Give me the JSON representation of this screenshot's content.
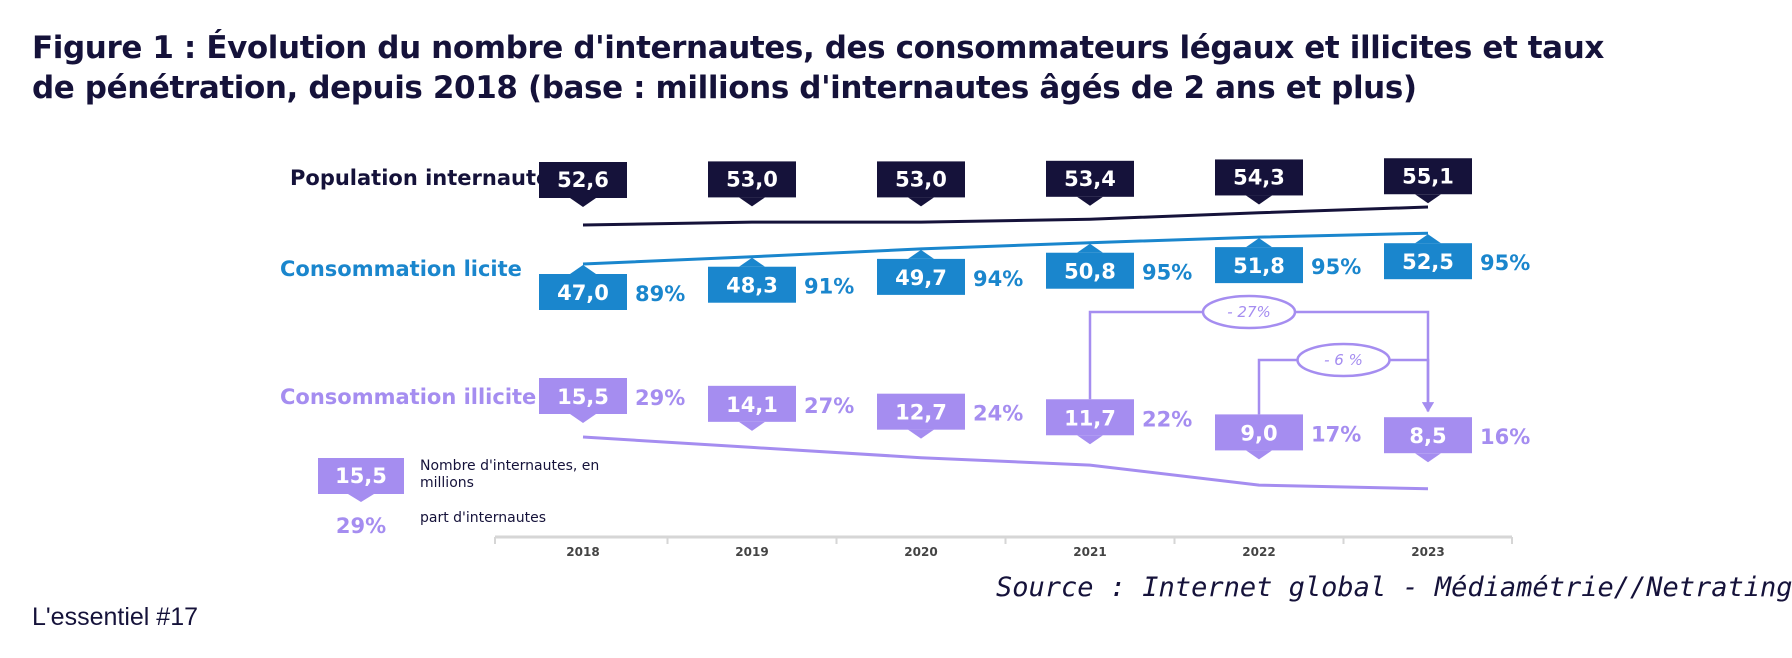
{
  "title": {
    "line1": "Figure 1 : Évolution du nombre d'internautes, des consommateurs légaux et illicites et taux",
    "line2": "de pénétration, depuis 2018 (base : millions d'internautes âgés de 2 ans et plus)"
  },
  "footer": {
    "label": "L'essentiel #17"
  },
  "source": {
    "text": "Source : Internet global - Médiamétrie//Netratings."
  },
  "colors": {
    "dark": "#15123a",
    "blue": "#1a86cd",
    "purple": "#a58df0",
    "axis": "#d6d6d6"
  },
  "chart_data": {
    "type": "line",
    "categories": [
      "2018",
      "2019",
      "2020",
      "2021",
      "2022",
      "2023"
    ],
    "series": [
      {
        "name": "Population internaute",
        "values": [
          52.6,
          53.0,
          53.0,
          53.4,
          54.3,
          55.1
        ],
        "labels": [
          "52,6",
          "53,0",
          "53,0",
          "53,4",
          "54,3",
          "55,1"
        ]
      },
      {
        "name": "Consommation licite",
        "values": [
          47.0,
          48.3,
          49.7,
          50.8,
          51.8,
          52.5
        ],
        "labels": [
          "47,0",
          "48,3",
          "49,7",
          "50,8",
          "51,8",
          "52,5"
        ],
        "shares": [
          "89%",
          "91%",
          "94%",
          "95%",
          "95%",
          "95%"
        ]
      },
      {
        "name": "Consommation illicite",
        "values": [
          15.5,
          14.1,
          12.7,
          11.7,
          9.0,
          8.5
        ],
        "labels": [
          "15,5",
          "14,1",
          "12,7",
          "11,7",
          "9,0",
          "8,5"
        ],
        "shares": [
          "29%",
          "27%",
          "24%",
          "22%",
          "17%",
          "16%"
        ]
      }
    ],
    "annotations": [
      {
        "text": "- 27%",
        "from": "2021",
        "to": "2023"
      },
      {
        "text": "- 6 %",
        "from": "2022",
        "to": "2023"
      }
    ],
    "legend": {
      "sample_value": "15,5",
      "sample_share": "29%",
      "value_desc_line1": "Nombre d'internautes, en",
      "value_desc_line2": "millions",
      "share_desc": "part d'internautes",
      "position": "bottom-left"
    }
  }
}
